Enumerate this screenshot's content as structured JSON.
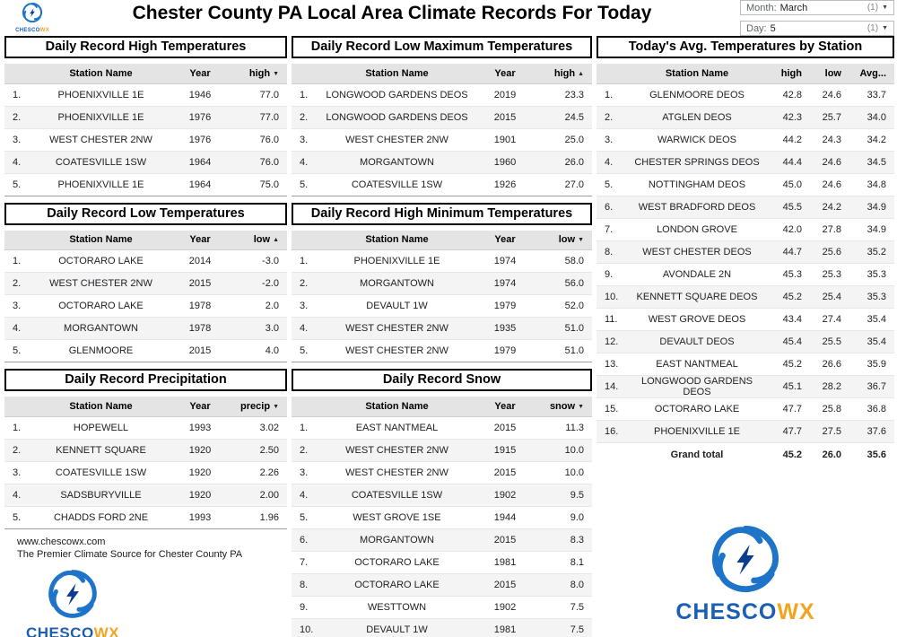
{
  "page": {
    "title": "Chester County PA Local Area Climate Records For Today"
  },
  "filters": {
    "month": {
      "label": "Month:",
      "value": "March",
      "count": "(1)"
    },
    "day": {
      "label": "Day:",
      "value": "5",
      "count": "(1)"
    }
  },
  "tables": {
    "record_high": {
      "title": "Daily Record High Temperatures",
      "columns": [
        {
          "label": "Station Name",
          "align": "center"
        },
        {
          "label": "Year",
          "align": "center"
        },
        {
          "label": "high",
          "align": "right",
          "arrow": "down"
        }
      ],
      "rows": [
        [
          "PHOENIXVILLE 1E",
          "1946",
          "77.0"
        ],
        [
          "PHOENIXVILLE 1E",
          "1976",
          "77.0"
        ],
        [
          "WEST CHESTER 2NW",
          "1976",
          "76.0"
        ],
        [
          "COATESVILLE 1SW",
          "1964",
          "76.0"
        ],
        [
          "PHOENIXVILLE 1E",
          "1964",
          "75.0"
        ]
      ]
    },
    "record_low": {
      "title": "Daily Record Low Temperatures",
      "columns": [
        {
          "label": "Station Name",
          "align": "center"
        },
        {
          "label": "Year",
          "align": "center"
        },
        {
          "label": "low",
          "align": "right",
          "arrow": "up"
        }
      ],
      "rows": [
        [
          "OCTORARO LAKE",
          "2014",
          "-3.0"
        ],
        [
          "WEST CHESTER 2NW",
          "2015",
          "-2.0"
        ],
        [
          "OCTORARO LAKE",
          "1978",
          "2.0"
        ],
        [
          "MORGANTOWN",
          "1978",
          "3.0"
        ],
        [
          "GLENMOORE",
          "2015",
          "4.0"
        ]
      ]
    },
    "record_precip": {
      "title": "Daily Record Precipitation",
      "columns": [
        {
          "label": "Station Name",
          "align": "center"
        },
        {
          "label": "Year",
          "align": "center"
        },
        {
          "label": "precip",
          "align": "right",
          "arrow": "down"
        }
      ],
      "rows": [
        [
          "HOPEWELL",
          "1993",
          "3.02"
        ],
        [
          "KENNETT SQUARE",
          "1920",
          "2.50"
        ],
        [
          "COATESVILLE 1SW",
          "1920",
          "2.26"
        ],
        [
          "SADSBURYVILLE",
          "1920",
          "2.00"
        ],
        [
          "CHADDS FORD 2NE",
          "1993",
          "1.96"
        ]
      ]
    },
    "record_low_max": {
      "title": "Daily Record Low Maximum Temperatures",
      "columns": [
        {
          "label": "Station Name",
          "align": "center"
        },
        {
          "label": "Year",
          "align": "center"
        },
        {
          "label": "high",
          "align": "right",
          "arrow": "up"
        }
      ],
      "rows": [
        [
          "LONGWOOD GARDENS DEOS",
          "2019",
          "23.3"
        ],
        [
          "LONGWOOD GARDENS DEOS",
          "2015",
          "24.5"
        ],
        [
          "WEST CHESTER 2NW",
          "1901",
          "25.0"
        ],
        [
          "MORGANTOWN",
          "1960",
          "26.0"
        ],
        [
          "COATESVILLE 1SW",
          "1926",
          "27.0"
        ]
      ]
    },
    "record_high_min": {
      "title": "Daily Record High Minimum Temperatures",
      "columns": [
        {
          "label": "Station Name",
          "align": "center"
        },
        {
          "label": "Year",
          "align": "center"
        },
        {
          "label": "low",
          "align": "right",
          "arrow": "down"
        }
      ],
      "rows": [
        [
          "PHOENIXVILLE 1E",
          "1974",
          "58.0"
        ],
        [
          "MORGANTOWN",
          "1974",
          "56.0"
        ],
        [
          "DEVAULT 1W",
          "1979",
          "52.0"
        ],
        [
          "WEST CHESTER 2NW",
          "1935",
          "51.0"
        ],
        [
          "WEST CHESTER 2NW",
          "1979",
          "51.0"
        ]
      ]
    },
    "record_snow": {
      "title": "Daily Record Snow",
      "columns": [
        {
          "label": "Station Name",
          "align": "center"
        },
        {
          "label": "Year",
          "align": "center"
        },
        {
          "label": "snow",
          "align": "right",
          "arrow": "down"
        }
      ],
      "rows": [
        [
          "EAST NANTMEAL",
          "2015",
          "11.3"
        ],
        [
          "WEST CHESTER 2NW",
          "1915",
          "10.0"
        ],
        [
          "WEST CHESTER 2NW",
          "2015",
          "10.0"
        ],
        [
          "COATESVILLE 1SW",
          "1902",
          "9.5"
        ],
        [
          "WEST GROVE 1SE",
          "1944",
          "9.0"
        ],
        [
          "MORGANTOWN",
          "2015",
          "8.3"
        ],
        [
          "OCTORARO LAKE",
          "1981",
          "8.1"
        ],
        [
          "OCTORARO LAKE",
          "2015",
          "8.0"
        ],
        [
          "WESTTOWN",
          "1902",
          "7.5"
        ],
        [
          "DEVAULT 1W",
          "1981",
          "7.5"
        ]
      ]
    },
    "avg_today": {
      "title": "Today's Avg. Temperatures by Station",
      "columns": [
        {
          "label": "Station Name",
          "align": "center"
        },
        {
          "label": "high",
          "align": "right"
        },
        {
          "label": "low",
          "align": "right"
        },
        {
          "label": "Avg...",
          "align": "right"
        }
      ],
      "rows": [
        [
          "GLENMOORE DEOS",
          "42.8",
          "24.6",
          "33.7"
        ],
        [
          "ATGLEN DEOS",
          "42.3",
          "25.7",
          "34.0"
        ],
        [
          "WARWICK DEOS",
          "44.2",
          "24.3",
          "34.2"
        ],
        [
          "CHESTER SPRINGS DEOS",
          "44.4",
          "24.6",
          "34.5"
        ],
        [
          "NOTTINGHAM DEOS",
          "45.0",
          "24.6",
          "34.8"
        ],
        [
          "WEST BRADFORD DEOS",
          "45.5",
          "24.2",
          "34.9"
        ],
        [
          "LONDON GROVE",
          "42.0",
          "27.8",
          "34.9"
        ],
        [
          "WEST CHESTER DEOS",
          "44.7",
          "25.6",
          "35.2"
        ],
        [
          "AVONDALE 2N",
          "45.3",
          "25.3",
          "35.3"
        ],
        [
          "KENNETT SQUARE DEOS",
          "45.2",
          "25.4",
          "35.3"
        ],
        [
          "WEST GROVE DEOS",
          "43.4",
          "27.4",
          "35.4"
        ],
        [
          "DEVAULT DEOS",
          "45.4",
          "25.5",
          "35.4"
        ],
        [
          "EAST NANTMEAL",
          "45.2",
          "26.6",
          "35.9"
        ],
        [
          "LONGWOOD GARDENS DEOS",
          "45.1",
          "28.2",
          "36.7"
        ],
        [
          "OCTORARO LAKE",
          "47.7",
          "25.8",
          "36.8"
        ],
        [
          "PHOENIXVILLE 1E",
          "47.7",
          "27.5",
          "37.6"
        ]
      ],
      "grand_total": [
        "Grand total",
        "45.2",
        "26.0",
        "35.6"
      ]
    }
  },
  "footer": {
    "website": "www.chescowx.com",
    "tagline": "The Premier Climate Source for Chester County PA"
  },
  "logo": {
    "name_blue": "CHESCO",
    "name_orange": "WX"
  },
  "colors": {
    "logo_blue": "#1b5fb5",
    "logo_orange": "#f2a41f",
    "table_header_bg": "#e4e4e4"
  }
}
